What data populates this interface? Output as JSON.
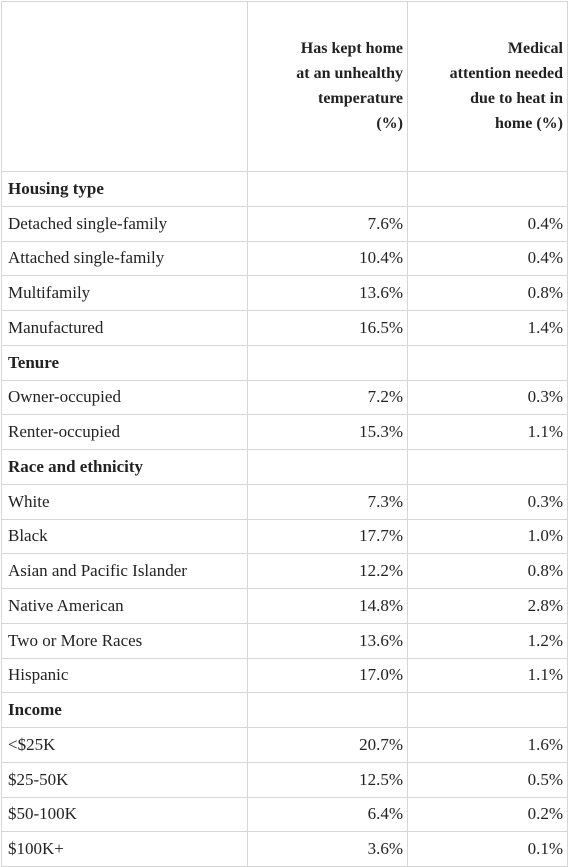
{
  "table": {
    "header": [
      [
        "Has kept home",
        "at an unhealthy",
        "temperature",
        "(%)"
      ],
      [
        "Medical",
        "attention needed",
        "due to heat in",
        "home (%)"
      ]
    ],
    "sections": [
      {
        "title": "Housing type",
        "rows": [
          {
            "label": "Detached single-family",
            "values": [
              "7.6%",
              "0.4%"
            ]
          },
          {
            "label": "Attached single-family",
            "values": [
              "10.4%",
              "0.4%"
            ]
          },
          {
            "label": "Multifamily",
            "values": [
              "13.6%",
              "0.8%"
            ]
          },
          {
            "label": "Manufactured",
            "values": [
              "16.5%",
              "1.4%"
            ]
          }
        ]
      },
      {
        "title": "Tenure",
        "rows": [
          {
            "label": "Owner-occupied",
            "values": [
              "7.2%",
              "0.3%"
            ]
          },
          {
            "label": "Renter-occupied",
            "values": [
              "15.3%",
              "1.1%"
            ]
          }
        ]
      },
      {
        "title": "Race and ethnicity",
        "rows": [
          {
            "label": "White",
            "values": [
              "7.3%",
              "0.3%"
            ]
          },
          {
            "label": "Black",
            "values": [
              "17.7%",
              "1.0%"
            ]
          },
          {
            "label": "Asian and Pacific Islander",
            "values": [
              "12.2%",
              "0.8%"
            ]
          },
          {
            "label": "Native American",
            "values": [
              "14.8%",
              "2.8%"
            ]
          },
          {
            "label": "Two or More Races",
            "values": [
              "13.6%",
              "1.2%"
            ]
          },
          {
            "label": "Hispanic",
            "values": [
              "17.0%",
              "1.1%"
            ]
          }
        ]
      },
      {
        "title": "Income",
        "rows": [
          {
            "label": "<$25K",
            "values": [
              "20.7%",
              "1.6%"
            ]
          },
          {
            "label": "$25-50K",
            "values": [
              "12.5%",
              "0.5%"
            ]
          },
          {
            "label": "$50-100K",
            "values": [
              "6.4%",
              "0.2%"
            ]
          },
          {
            "label": "$100K+",
            "values": [
              "3.6%",
              "0.1%"
            ]
          }
        ]
      }
    ]
  }
}
